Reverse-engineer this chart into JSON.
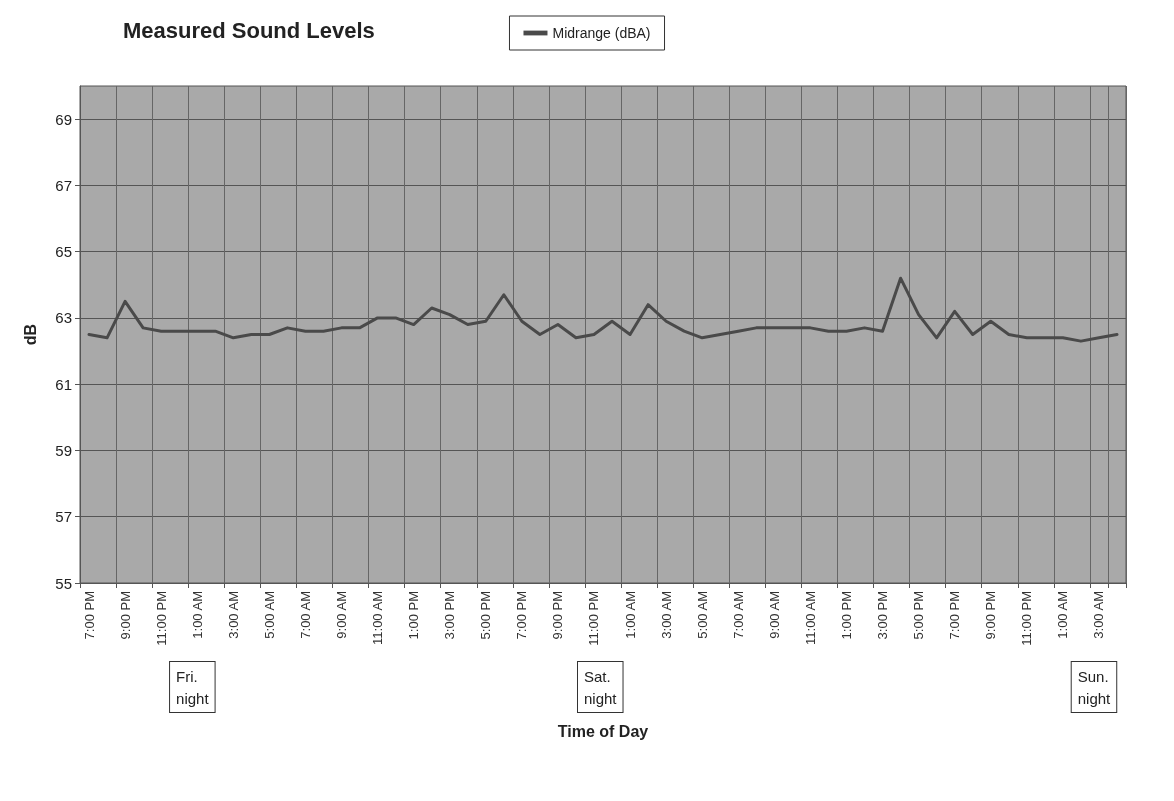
{
  "chart_data": {
    "type": "line",
    "title": "Measured Sound Levels",
    "xlabel": "Time of Day",
    "ylabel": "dB",
    "categories": [
      "7:00 PM",
      null,
      "9:00 PM",
      null,
      "11:00 PM",
      null,
      "1:00 AM",
      null,
      "3:00 AM",
      null,
      "5:00 AM",
      null,
      "7:00 AM",
      null,
      "9:00 AM",
      null,
      "11:00 AM",
      null,
      "1:00 PM",
      null,
      "3:00 PM",
      null,
      "5:00 PM",
      null,
      "7:00 PM",
      null,
      "9:00 PM",
      null,
      "11:00 PM",
      null,
      "1:00 AM",
      null,
      "3:00 AM",
      null,
      "5:00 AM",
      null,
      "7:00 AM",
      null,
      "9:00 AM",
      null,
      "11:00 AM",
      null,
      "1:00 PM",
      null,
      "3:00 PM",
      null,
      "5:00 PM",
      null,
      "7:00 PM",
      null,
      "9:00 PM",
      null,
      "11:00 PM",
      null,
      "1:00 AM",
      null,
      "3:00 AM",
      null
    ],
    "series": [
      {
        "name": "Midrange (dBA)",
        "color": "#4a4a4a",
        "values": [
          62.5,
          62.4,
          63.5,
          62.7,
          62.6,
          62.6,
          62.6,
          62.6,
          62.4,
          62.5,
          62.5,
          62.7,
          62.6,
          62.6,
          62.7,
          62.7,
          63.0,
          63.0,
          62.8,
          63.3,
          63.1,
          62.8,
          62.9,
          63.7,
          62.9,
          62.5,
          62.8,
          62.4,
          62.5,
          62.9,
          62.5,
          63.4,
          62.9,
          62.6,
          62.4,
          62.5,
          62.6,
          62.7,
          62.7,
          62.7,
          62.7,
          62.6,
          62.6,
          62.7,
          62.6,
          64.2,
          63.1,
          62.4,
          63.2,
          62.5,
          62.9,
          62.5,
          62.4,
          62.4,
          62.4,
          62.3,
          62.4,
          62.5
        ]
      }
    ],
    "ylim": [
      55,
      70
    ],
    "yticks": [
      55,
      57,
      59,
      61,
      63,
      65,
      67,
      69
    ],
    "grid": true,
    "legend": "top",
    "marker": "none",
    "line_style": "solid",
    "annotations": [
      "Fri. night",
      "Sat. night",
      "Sun. night"
    ]
  }
}
